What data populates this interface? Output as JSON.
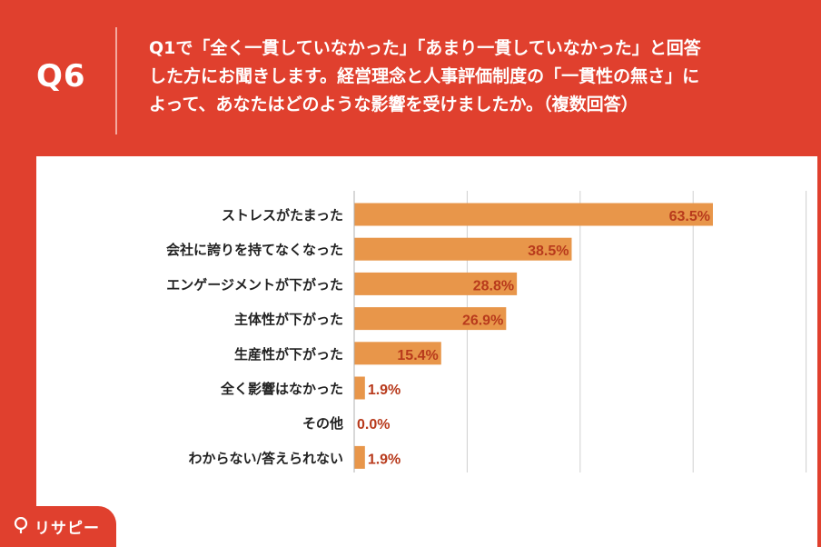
{
  "question_number": "Q6",
  "question_lines": [
    "Q1で「全く一貫していなかった」「あまり一貫していなかった」と回答",
    "した方にお聞きします。経営理念と人事評価制度の「一貫性の無さ」に",
    "よって、あなたはどのような影響を受けましたか。（複数回答）"
  ],
  "logo_text": "リサピー",
  "colors": {
    "background": "#e0402e",
    "bar": "#e8964a",
    "value_label": "#b83a1c",
    "category_label": "#222222",
    "grid": "#d0d0d0"
  },
  "chart_data": {
    "type": "bar",
    "orientation": "horizontal",
    "title": "",
    "xlabel": "",
    "ylabel": "",
    "xlim": [
      0,
      80
    ],
    "grid": true,
    "categories": [
      "ストレスがたまった",
      "会社に誇りを持てなくなった",
      "エンゲージメントが下がった",
      "主体性が下がった",
      "生産性が下がった",
      "全く影響はなかった",
      "その他",
      "わからない/答えられない"
    ],
    "values": [
      63.5,
      38.5,
      28.8,
      26.9,
      15.4,
      1.9,
      0.0,
      1.9
    ],
    "value_labels": [
      "63.5%",
      "38.5%",
      "28.8%",
      "26.9%",
      "15.4%",
      "1.9%",
      "0.0%",
      "1.9%"
    ]
  }
}
